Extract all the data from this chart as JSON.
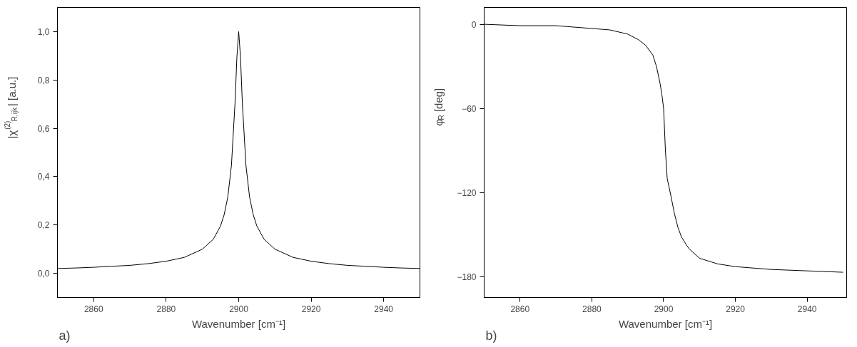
{
  "chart_data": [
    {
      "type": "line",
      "xlabel": "Wavenumber [cm⁻¹]",
      "ylabel": "|χ$^{(2)}$$_{R,ijk}$| [a.u.]",
      "annotations": [
        "a)"
      ],
      "x": [
        2850,
        2855,
        2860,
        2865,
        2870,
        2875,
        2880,
        2885,
        2890,
        2893,
        2895,
        2896,
        2897,
        2898,
        2899,
        2899.5,
        2900,
        2900.5,
        2901,
        2902,
        2903,
        2904,
        2905,
        2907,
        2910,
        2915,
        2920,
        2925,
        2930,
        2935,
        2940,
        2945,
        2950
      ],
      "series": [
        {
          "color": "#000000",
          "values": [
            0.02,
            0.022,
            0.025,
            0.029,
            0.033,
            0.04,
            0.05,
            0.066,
            0.1,
            0.141,
            0.196,
            0.243,
            0.316,
            0.447,
            0.707,
            0.894,
            1.0,
            0.894,
            0.707,
            0.447,
            0.316,
            0.243,
            0.196,
            0.141,
            0.1,
            0.066,
            0.05,
            0.04,
            0.033,
            0.029,
            0.025,
            0.022,
            0.02
          ]
        }
      ],
      "xlim": [
        2850,
        2950
      ],
      "xticks": [
        2860,
        2880,
        2900,
        2920,
        2940
      ],
      "ylim": [
        -0.1,
        1.1
      ],
      "yticks": [
        {
          "value": 0,
          "label": "0,0"
        },
        {
          "value": 0.2,
          "label": "0,2"
        },
        {
          "value": 0.4,
          "label": "0,4"
        },
        {
          "value": 0.6,
          "label": "0,6"
        },
        {
          "value": 0.8,
          "label": "0,8"
        },
        {
          "value": 1.0,
          "label": "1,0"
        }
      ],
      "grid": false,
      "marker": "none",
      "line_style": "solid"
    },
    {
      "type": "line",
      "xlabel": "Wavenumber [cm⁻¹]",
      "ylabel": "φ$_{R}$ [deg]",
      "annotations": [
        "b)"
      ],
      "x": [
        2850,
        2860,
        2870,
        2880,
        2885,
        2890,
        2893,
        2895,
        2897,
        2898,
        2899,
        2899.5,
        2900,
        2900.5,
        2901,
        2902,
        2903,
        2904,
        2905,
        2907,
        2910,
        2915,
        2920,
        2930,
        2940,
        2950
      ],
      "series": [
        {
          "color": "#000000",
          "values": [
            0,
            -1,
            -1,
            -3,
            -4,
            -7,
            -11,
            -15,
            -22,
            -30,
            -42,
            -50,
            -60,
            -90,
            -110,
            -122,
            -135,
            -145,
            -152,
            -160,
            -167,
            -171,
            -173,
            -175,
            -176,
            -177
          ]
        }
      ],
      "xlim": [
        2850,
        2951
      ],
      "xticks": [
        2860,
        2880,
        2900,
        2920,
        2940
      ],
      "ylim": [
        -195,
        12
      ],
      "yticks": [
        0,
        -60,
        -120,
        -180
      ],
      "grid": false,
      "marker": "none",
      "line_style": "solid"
    }
  ]
}
